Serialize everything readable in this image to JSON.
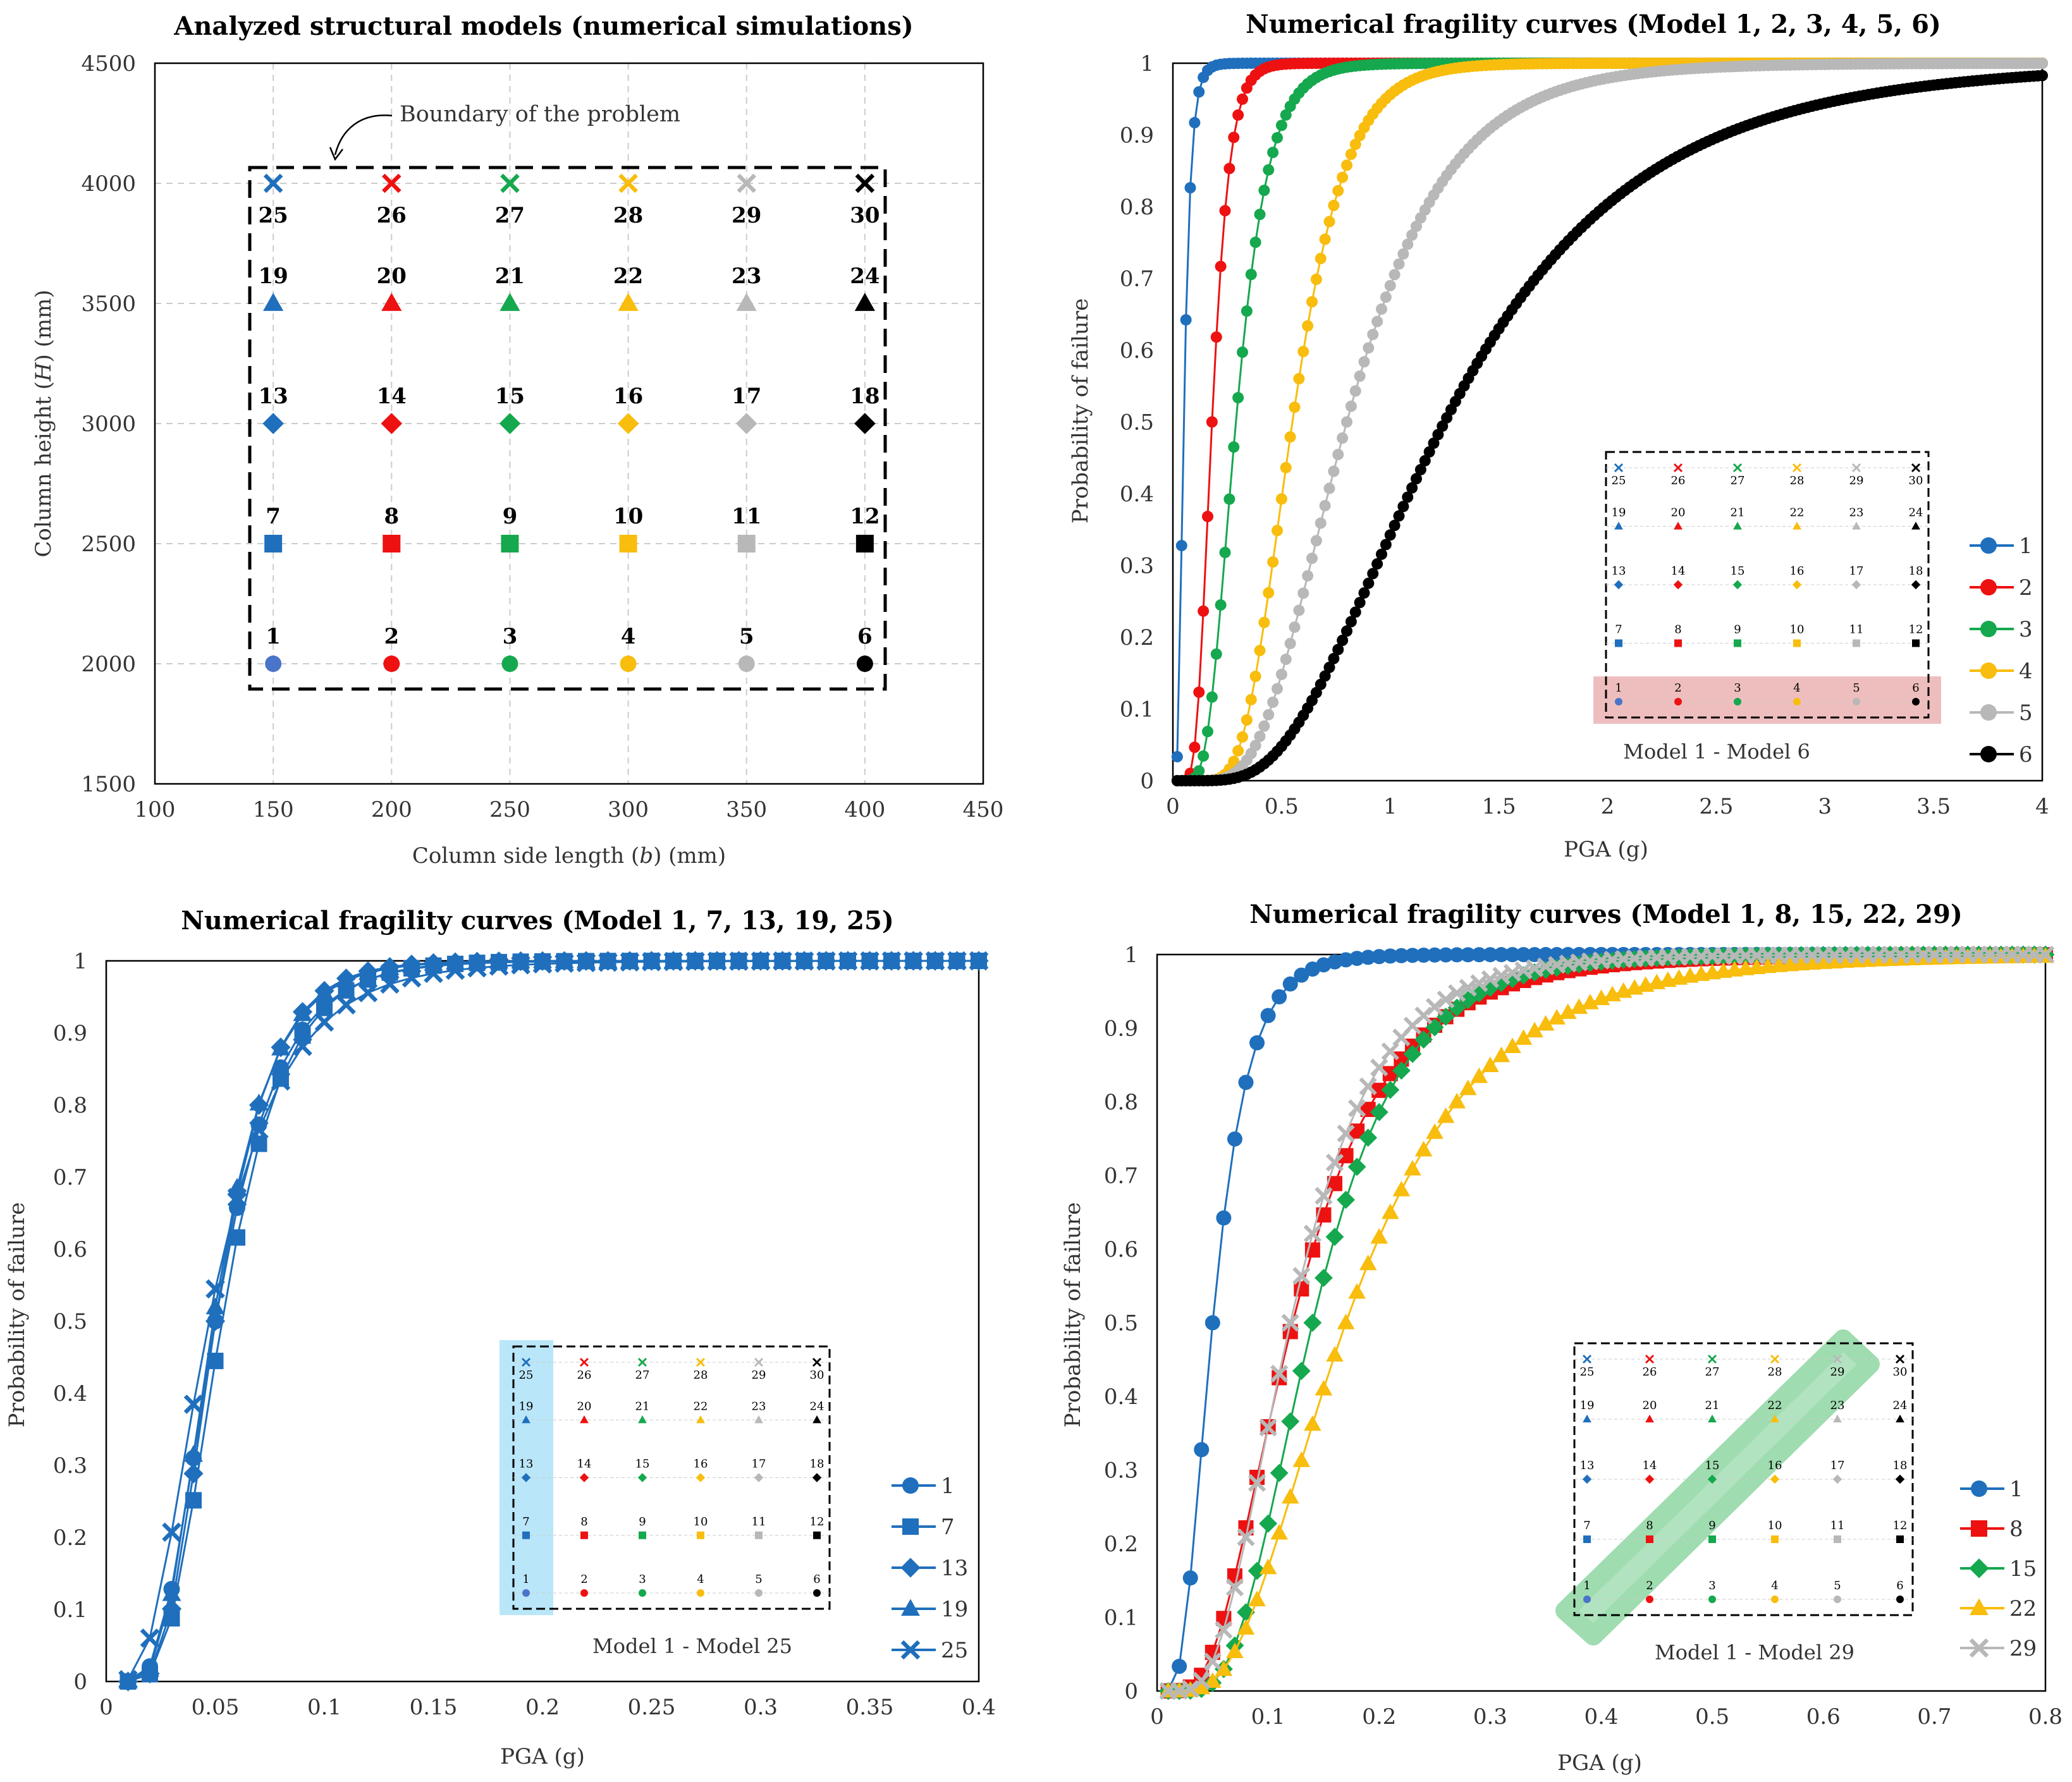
{
  "series_colors": {
    "c1": "#1f6fbd",
    "c2": "#ee1111",
    "c3": "#15a84e",
    "c4": "#f8bd0d",
    "c5": "#b8b8b8",
    "c6": "#000000"
  },
  "inset_caption_a": "Model 1 - Model 6",
  "inset_caption_b": "Model 1 - Model 25",
  "inset_caption_c": "Model 1 - Model 29",
  "chart_data": [
    {
      "type": "scatter",
      "title": "Analyzed structural models (numerical simulations)",
      "xlabel_pre": "Column side length (",
      "xlabel_var": "b",
      "xlabel_post": ") (mm)",
      "ylabel_pre": "Column height (",
      "ylabel_var": "H",
      "ylabel_post": ") (mm)",
      "xlim": [
        100,
        450
      ],
      "ylim": [
        1500,
        4500
      ],
      "xticks": [
        "100",
        "150",
        "200",
        "250",
        "300",
        "350",
        "400",
        "450"
      ],
      "yticks": [
        "1500",
        "2000",
        "2500",
        "3000",
        "3500",
        "4000",
        "4500"
      ],
      "annotation": "Boundary of the problem",
      "grid": true,
      "b_values": [
        150,
        200,
        250,
        300,
        350,
        400
      ],
      "h_values": [
        2000,
        2500,
        3000,
        3500,
        4000
      ],
      "markers_by_row": [
        "circle",
        "square",
        "diamond",
        "triangle",
        "cross"
      ],
      "models": [
        "1",
        "2",
        "3",
        "4",
        "5",
        "6",
        "7",
        "8",
        "9",
        "10",
        "11",
        "12",
        "13",
        "14",
        "15",
        "16",
        "17",
        "18",
        "19",
        "20",
        "21",
        "22",
        "23",
        "24",
        "25",
        "26",
        "27",
        "28",
        "29",
        "30"
      ]
    },
    {
      "type": "line",
      "title": "Numerical fragility curves (Model 1, 2, 3, 4, 5, 6)",
      "xlabel": "PGA (g)",
      "ylabel": "Probability of failure",
      "xlim": [
        0,
        4
      ],
      "ylim": [
        0,
        1
      ],
      "xticks": [
        "0",
        "0.5",
        "1",
        "1.5",
        "2",
        "2.5",
        "3",
        "3.5",
        "4"
      ],
      "yticks": [
        "0",
        "0.1",
        "0.2",
        "0.3",
        "0.4",
        "0.5",
        "0.6",
        "0.7",
        "0.8",
        "0.9",
        "1"
      ],
      "legend_position": "right",
      "series": [
        {
          "name": "1",
          "model": 1,
          "median_g": 0.05,
          "beta": 0.5,
          "step_g": 0.02
        },
        {
          "name": "2",
          "model": 2,
          "median_g": 0.18,
          "beta": 0.35,
          "step_g": 0.02
        },
        {
          "name": "3",
          "model": 3,
          "median_g": 0.29,
          "beta": 0.4,
          "step_g": 0.02
        },
        {
          "name": "4",
          "model": 4,
          "median_g": 0.55,
          "beta": 0.35,
          "step_g": 0.02
        },
        {
          "name": "5",
          "model": 5,
          "median_g": 0.8,
          "beta": 0.45,
          "step_g": 0.02
        },
        {
          "name": "6",
          "model": 6,
          "median_g": 1.25,
          "beta": 0.55,
          "step_g": 0.02
        }
      ]
    },
    {
      "type": "line",
      "title": "Numerical fragility curves (Model 1, 7, 13, 19, 25)",
      "xlabel": "PGA (g)",
      "ylabel": "Probability of failure",
      "xlim": [
        0,
        0.4
      ],
      "ylim": [
        0,
        1
      ],
      "xticks": [
        "0",
        "0.05",
        "0.1",
        "0.15",
        "0.2",
        "0.25",
        "0.3",
        "0.35",
        "0.4"
      ],
      "yticks": [
        "0",
        "0.1",
        "0.2",
        "0.3",
        "0.4",
        "0.5",
        "0.6",
        "0.7",
        "0.8",
        "0.9",
        "1"
      ],
      "legend_position": "right",
      "series": [
        {
          "name": "1",
          "model": 1,
          "median_g": 0.05,
          "beta": 0.45,
          "step_g": 0.01
        },
        {
          "name": "7",
          "model": 7,
          "median_g": 0.053,
          "beta": 0.42,
          "step_g": 0.01
        },
        {
          "name": "13",
          "model": 13,
          "median_g": 0.05,
          "beta": 0.4,
          "step_g": 0.01
        },
        {
          "name": "19",
          "model": 19,
          "median_g": 0.049,
          "beta": 0.42,
          "step_g": 0.01
        },
        {
          "name": "25",
          "model": 25,
          "median_g": 0.047,
          "beta": 0.55,
          "step_g": 0.01
        }
      ]
    },
    {
      "type": "line",
      "title": "Numerical fragility curves (Model 1, 8, 15, 22, 29)",
      "xlabel": "PGA (g)",
      "ylabel": "Probability of failure",
      "xlim": [
        0,
        0.8
      ],
      "ylim": [
        0,
        1
      ],
      "xticks": [
        "0",
        "0.1",
        "0.2",
        "0.3",
        "0.4",
        "0.5",
        "0.6",
        "0.7",
        "0.8"
      ],
      "yticks": [
        "0",
        "0.1",
        "0.2",
        "0.3",
        "0.4",
        "0.5",
        "0.6",
        "0.7",
        "0.8",
        "0.9",
        "1"
      ],
      "legend_position": "right",
      "series": [
        {
          "name": "1",
          "model": 1,
          "median_g": 0.05,
          "beta": 0.5,
          "step_g": 0.01
        },
        {
          "name": "8",
          "model": 8,
          "median_g": 0.122,
          "beta": 0.55,
          "step_g": 0.01
        },
        {
          "name": "15",
          "model": 15,
          "median_g": 0.14,
          "beta": 0.45,
          "step_g": 0.01
        },
        {
          "name": "22",
          "model": 22,
          "median_g": 0.17,
          "beta": 0.55,
          "step_g": 0.01
        },
        {
          "name": "29",
          "model": 29,
          "median_g": 0.12,
          "beta": 0.5,
          "step_g": 0.01
        }
      ]
    }
  ]
}
